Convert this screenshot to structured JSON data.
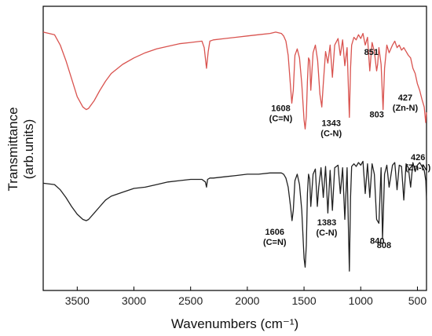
{
  "chart_data": {
    "type": "line",
    "xlabel": "Wavenumbers (cm⁻¹)",
    "ylabel_line1": "Transmittance",
    "ylabel_line2": "(arb.units)",
    "xlim": [
      3800,
      420
    ],
    "x_reversed": true,
    "ylim": [
      0,
      2.2
    ],
    "x_ticks": [
      {
        "value": 3500,
        "label": "3500"
      },
      {
        "value": 3000,
        "label": "3000"
      },
      {
        "value": 2500,
        "label": "2500"
      },
      {
        "value": 2000,
        "label": "2000"
      },
      {
        "value": 1500,
        "label": "1500"
      },
      {
        "value": 1000,
        "label": "1000"
      },
      {
        "value": 500,
        "label": "500"
      }
    ],
    "series": [
      {
        "color": "#d9534f",
        "x": [
          3800,
          3700,
          3650,
          3600,
          3550,
          3500,
          3450,
          3420,
          3400,
          3350,
          3300,
          3250,
          3200,
          3100,
          3000,
          2900,
          2800,
          2700,
          2600,
          2500,
          2400,
          2380,
          2360,
          2345,
          2330,
          2300,
          2200,
          2100,
          2000,
          1900,
          1800,
          1750,
          1700,
          1680,
          1660,
          1640,
          1625,
          1608,
          1595,
          1580,
          1560,
          1540,
          1520,
          1500,
          1490,
          1480,
          1470,
          1460,
          1450,
          1440,
          1420,
          1400,
          1380,
          1360,
          1343,
          1330,
          1310,
          1290,
          1270,
          1250,
          1230,
          1200,
          1180,
          1160,
          1140,
          1120,
          1100,
          1090,
          1080,
          1060,
          1040,
          1020,
          1000,
          980,
          960,
          940,
          920,
          900,
          880,
          860,
          851,
          840,
          820,
          803,
          790,
          770,
          750,
          720,
          700,
          680,
          660,
          640,
          620,
          600,
          580,
          560,
          540,
          520,
          500,
          480,
          460,
          440,
          427,
          420
        ],
        "y": [
          2.0,
          1.98,
          1.9,
          1.78,
          1.64,
          1.5,
          1.42,
          1.4,
          1.41,
          1.47,
          1.55,
          1.62,
          1.68,
          1.75,
          1.8,
          1.84,
          1.87,
          1.89,
          1.91,
          1.92,
          1.93,
          1.88,
          1.72,
          1.85,
          1.93,
          1.94,
          1.95,
          1.96,
          1.97,
          1.98,
          1.99,
          2.0,
          1.99,
          1.97,
          1.93,
          1.82,
          1.65,
          1.45,
          1.55,
          1.82,
          1.87,
          1.8,
          1.6,
          1.32,
          1.25,
          1.35,
          1.62,
          1.8,
          1.78,
          1.55,
          1.84,
          1.9,
          1.78,
          1.52,
          1.42,
          1.6,
          1.85,
          1.76,
          1.9,
          1.65,
          1.9,
          1.95,
          1.82,
          1.94,
          1.74,
          1.88,
          1.34,
          1.72,
          1.9,
          1.96,
          1.94,
          1.98,
          1.95,
          1.99,
          1.9,
          1.96,
          1.7,
          1.92,
          1.85,
          1.7,
          1.75,
          1.88,
          1.75,
          1.4,
          1.72,
          1.9,
          1.84,
          1.9,
          1.93,
          1.88,
          1.9,
          1.86,
          1.88,
          1.85,
          1.82,
          1.8,
          1.72,
          1.68,
          1.6,
          1.55,
          1.48,
          1.42,
          1.3,
          1.38
        ]
      },
      {
        "color": "#222222",
        "x": [
          3800,
          3700,
          3650,
          3600,
          3550,
          3500,
          3450,
          3420,
          3400,
          3350,
          3300,
          3250,
          3200,
          3100,
          3000,
          2900,
          2800,
          2700,
          2600,
          2500,
          2400,
          2370,
          2360,
          2350,
          2330,
          2300,
          2200,
          2100,
          2000,
          1900,
          1800,
          1750,
          1700,
          1680,
          1660,
          1640,
          1620,
          1606,
          1595,
          1580,
          1560,
          1540,
          1520,
          1500,
          1490,
          1480,
          1470,
          1460,
          1450,
          1440,
          1420,
          1400,
          1383,
          1370,
          1350,
          1330,
          1310,
          1290,
          1270,
          1250,
          1230,
          1200,
          1180,
          1160,
          1140,
          1120,
          1100,
          1090,
          1080,
          1060,
          1040,
          1020,
          1000,
          980,
          960,
          940,
          920,
          900,
          880,
          860,
          840,
          820,
          808,
          790,
          770,
          750,
          720,
          700,
          680,
          660,
          640,
          620,
          600,
          580,
          560,
          540,
          520,
          500,
          480,
          460,
          440,
          426,
          420
        ],
        "y": [
          0.83,
          0.82,
          0.78,
          0.72,
          0.65,
          0.59,
          0.55,
          0.54,
          0.55,
          0.6,
          0.65,
          0.7,
          0.73,
          0.76,
          0.79,
          0.8,
          0.82,
          0.84,
          0.85,
          0.86,
          0.86,
          0.84,
          0.8,
          0.86,
          0.87,
          0.87,
          0.88,
          0.89,
          0.9,
          0.9,
          0.91,
          0.91,
          0.91,
          0.9,
          0.87,
          0.8,
          0.66,
          0.54,
          0.62,
          0.85,
          0.9,
          0.82,
          0.62,
          0.25,
          0.18,
          0.35,
          0.75,
          0.9,
          0.86,
          0.65,
          0.9,
          0.94,
          0.65,
          0.8,
          0.95,
          0.72,
          0.96,
          0.6,
          0.93,
          0.62,
          0.95,
          0.97,
          0.75,
          0.95,
          0.55,
          0.95,
          0.15,
          0.72,
          0.96,
          0.98,
          0.96,
          0.99,
          0.97,
          1.0,
          0.75,
          0.98,
          0.72,
          0.98,
          0.9,
          0.55,
          0.52,
          0.95,
          0.4,
          0.9,
          0.97,
          0.8,
          0.97,
          0.99,
          0.78,
          0.97,
          0.96,
          0.7,
          0.98,
          0.95,
          0.8,
          0.99,
          0.92,
          0.97,
          0.99,
          0.96,
          0.93,
          0.85,
          0.7
        ]
      }
    ],
    "annotations": [
      {
        "label": "1608",
        "sub": "(C=N)",
        "x": 1608
      },
      {
        "label": "1343",
        "sub": "(C-N)",
        "x": 1343
      },
      {
        "label": "851",
        "x": 851
      },
      {
        "label": "803",
        "x": 803
      },
      {
        "label": "427",
        "sub": "(Zn-N)",
        "x": 427
      },
      {
        "label": "1606",
        "sub": "(C=N)",
        "x": 1606
      },
      {
        "label": "1383",
        "sub": "(C-N)",
        "x": 1383
      },
      {
        "label": "840",
        "x": 840
      },
      {
        "label": "808",
        "x": 808
      },
      {
        "label": "426",
        "sub": "(Zn-N)",
        "x": 426
      }
    ]
  }
}
